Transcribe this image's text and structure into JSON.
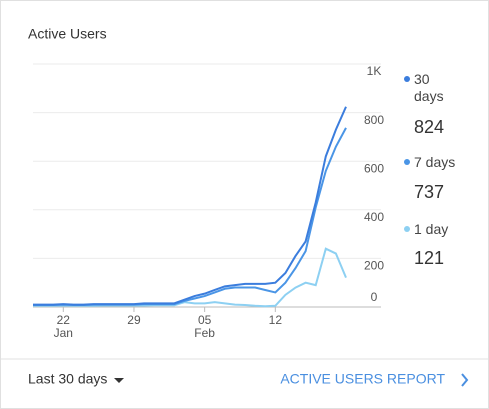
{
  "chart_data": {
    "type": "line",
    "title": "Active Users",
    "categories": [
      null,
      null,
      null,
      "22",
      null,
      null,
      null,
      null,
      null,
      null,
      "29",
      null,
      null,
      null,
      null,
      null,
      null,
      "05",
      null,
      null,
      null,
      null,
      null,
      null,
      "12",
      null,
      null,
      null,
      null,
      null,
      null,
      null
    ],
    "months": [
      null,
      null,
      null,
      "Jan",
      null,
      null,
      null,
      null,
      null,
      null,
      null,
      null,
      null,
      null,
      null,
      null,
      null,
      "Feb",
      null,
      null,
      null,
      null,
      null,
      null,
      null,
      null,
      null,
      null,
      null,
      null,
      null,
      null
    ],
    "series": [
      {
        "name": "30 days",
        "color": "#3b7ddd",
        "values": [
          10,
          10,
          10,
          12,
          10,
          10,
          12,
          12,
          12,
          12,
          12,
          15,
          15,
          15,
          15,
          30,
          45,
          55,
          70,
          85,
          90,
          95,
          95,
          95,
          100,
          140,
          210,
          270,
          430,
          620,
          730,
          824
        ]
      },
      {
        "name": "7 days",
        "color": "#4a95e6",
        "values": [
          8,
          8,
          8,
          10,
          8,
          8,
          10,
          10,
          10,
          10,
          10,
          12,
          12,
          12,
          12,
          25,
          35,
          45,
          60,
          75,
          80,
          80,
          80,
          70,
          60,
          100,
          160,
          230,
          410,
          560,
          660,
          737
        ]
      },
      {
        "name": "1 day",
        "color": "#8dd0f2",
        "values": [
          5,
          5,
          5,
          6,
          5,
          5,
          5,
          6,
          6,
          6,
          6,
          6,
          7,
          7,
          7,
          20,
          15,
          15,
          20,
          15,
          10,
          8,
          5,
          3,
          5,
          50,
          80,
          100,
          90,
          240,
          220,
          121
        ]
      }
    ],
    "ylim": [
      0,
      1000
    ],
    "yticks": [
      0,
      200,
      400,
      600,
      800,
      {
        "value": 1000,
        "label": "1K"
      }
    ],
    "grid": true
  },
  "footer": {
    "range": "Last 30 days",
    "link": "ACTIVE USERS REPORT"
  }
}
